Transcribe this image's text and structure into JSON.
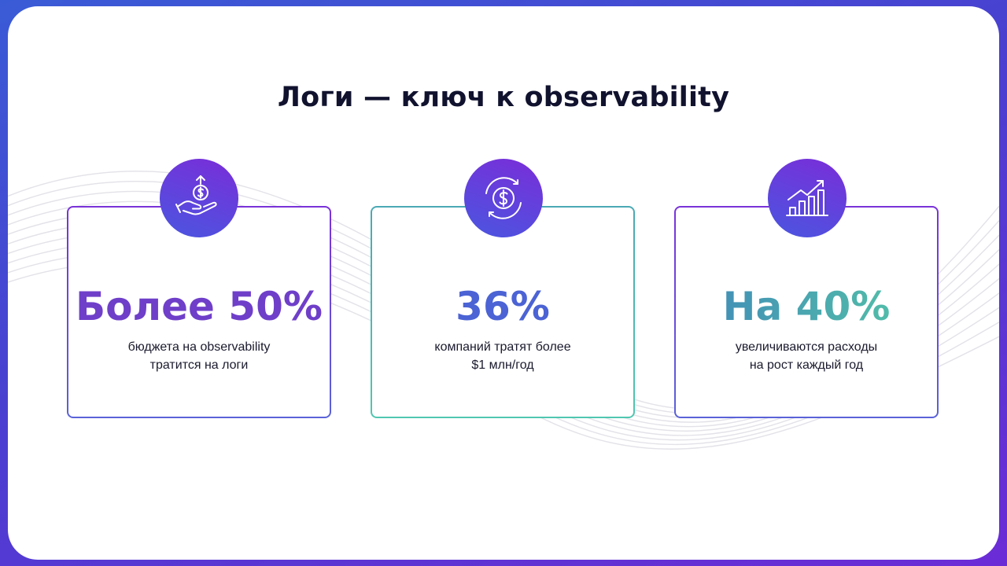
{
  "title": "Логи — ключ к observability",
  "cards": [
    {
      "icon": "hand-coin-up-icon",
      "stat": "Более 50%",
      "line1": "бюджета на observability",
      "line2": "тратится на логи"
    },
    {
      "icon": "dollar-cycle-icon",
      "stat": "36%",
      "line1": "компаний тратят более",
      "line2": "$1 млн/год"
    },
    {
      "icon": "growth-chart-icon",
      "stat": "На 40%",
      "line1": "увеличиваются расходы",
      "line2": "на рост каждый год"
    }
  ],
  "colors": {
    "frame_gradient": [
      "#3a5bd6",
      "#6b2cd6"
    ],
    "title": "#10122e",
    "accent_purple": "#6f3fc9",
    "accent_blue": "#4b63d4",
    "accent_teal": "#55c7a6"
  }
}
